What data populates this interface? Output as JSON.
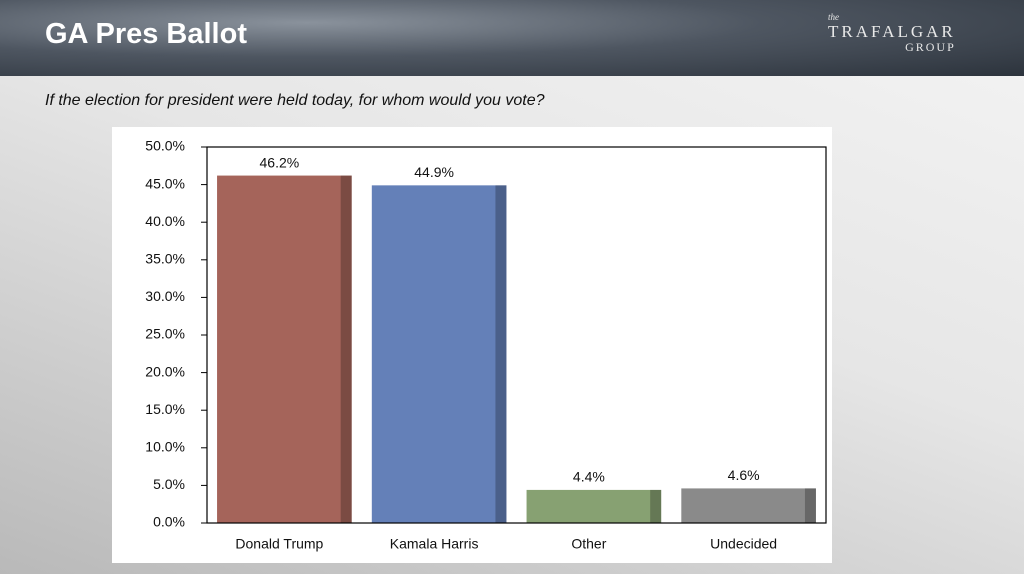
{
  "header": {
    "title": "GA Pres Ballot",
    "logo_top": "the",
    "logo_name": "TRAFALGAR",
    "logo_sub": "GROUP"
  },
  "subtitle": "If the election for president were held today, for whom would you vote?",
  "chart_data": {
    "type": "bar",
    "categories": [
      "Donald Trump",
      "Kamala Harris",
      "Other",
      "Undecided"
    ],
    "values": [
      46.2,
      44.9,
      4.4,
      4.6
    ],
    "value_labels": [
      "46.2%",
      "44.9%",
      "4.4%",
      "4.6%"
    ],
    "colors": [
      "#a5645a",
      "#6480b8",
      "#87a172",
      "#8a8a8a"
    ],
    "ylim": [
      0,
      50
    ],
    "yticks": [
      {
        "value": 0,
        "label": "0.0%"
      },
      {
        "value": 5,
        "label": "5.0%"
      },
      {
        "value": 10,
        "label": "10.0%"
      },
      {
        "value": 15,
        "label": "15.0%"
      },
      {
        "value": 20,
        "label": "20.0%"
      },
      {
        "value": 25,
        "label": "25.0%"
      },
      {
        "value": 30,
        "label": "30.0%"
      },
      {
        "value": 35,
        "label": "35.0%"
      },
      {
        "value": 40,
        "label": "40.0%"
      },
      {
        "value": 45,
        "label": "45.0%"
      },
      {
        "value": 50,
        "label": "50.0%"
      }
    ],
    "grid": false
  }
}
